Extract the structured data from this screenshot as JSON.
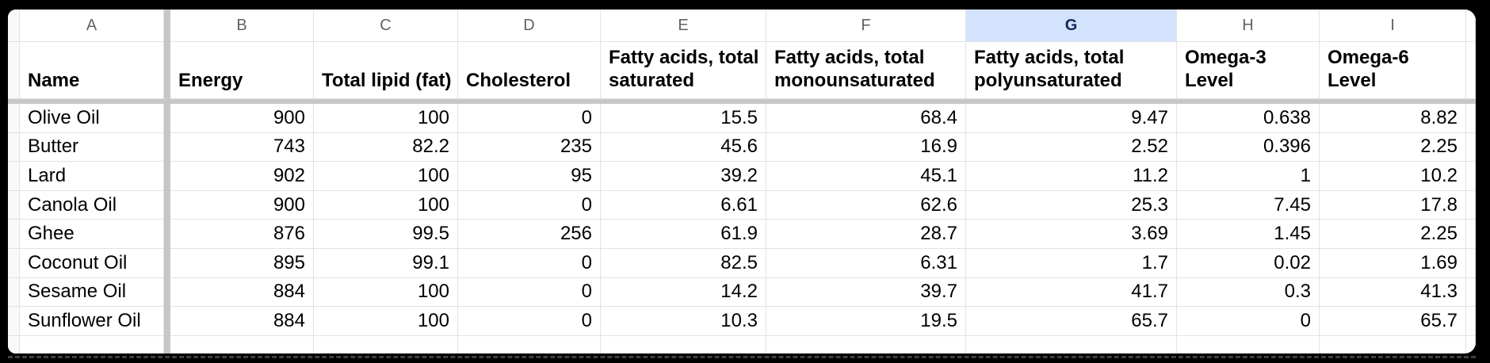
{
  "app": {
    "type": "spreadsheet-grid",
    "selected_column": "G"
  },
  "colors": {
    "selected_header_bg": "#d3e3fd",
    "selected_header_text": "#13295c",
    "gridline": "#e2e2e2",
    "freeze_divider": "#c7c7c7",
    "column_letter_text": "#5f6368"
  },
  "sheet": {
    "columns": [
      {
        "letter": "A",
        "header": "Name",
        "align": "left"
      },
      {
        "letter": "B",
        "header": "Energy",
        "align": "right"
      },
      {
        "letter": "C",
        "header": "Total lipid (fat)",
        "align": "right"
      },
      {
        "letter": "D",
        "header": "Cholesterol",
        "align": "right"
      },
      {
        "letter": "E",
        "header": "Fatty acids, total\nsaturated",
        "align": "right"
      },
      {
        "letter": "F",
        "header": "Fatty acids, total\nmonounsaturated",
        "align": "right"
      },
      {
        "letter": "G",
        "header": "Fatty acids, total\npolyunsaturated",
        "align": "right"
      },
      {
        "letter": "H",
        "header": "Omega-3\nLevel",
        "align": "right"
      },
      {
        "letter": "I",
        "header": "Omega-6\nLevel",
        "align": "right"
      }
    ],
    "rows": [
      [
        "Olive Oil",
        "900",
        "100",
        "0",
        "15.5",
        "68.4",
        "9.47",
        "0.638",
        "8.82"
      ],
      [
        "Butter",
        "743",
        "82.2",
        "235",
        "45.6",
        "16.9",
        "2.52",
        "0.396",
        "2.25"
      ],
      [
        "Lard",
        "902",
        "100",
        "95",
        "39.2",
        "45.1",
        "11.2",
        "1",
        "10.2"
      ],
      [
        "Canola Oil",
        "900",
        "100",
        "0",
        "6.61",
        "62.6",
        "25.3",
        "7.45",
        "17.8"
      ],
      [
        "Ghee",
        "876",
        "99.5",
        "256",
        "61.9",
        "28.7",
        "3.69",
        "1.45",
        "2.25"
      ],
      [
        "Coconut Oil",
        "895",
        "99.1",
        "0",
        "82.5",
        "6.31",
        "1.7",
        "0.02",
        "1.69"
      ],
      [
        "Sesame Oil",
        "884",
        "100",
        "0",
        "14.2",
        "39.7",
        "41.7",
        "0.3",
        "41.3"
      ],
      [
        "Sunflower Oil",
        "884",
        "100",
        "0",
        "10.3",
        "19.5",
        "65.7",
        "0",
        "65.7"
      ]
    ]
  }
}
